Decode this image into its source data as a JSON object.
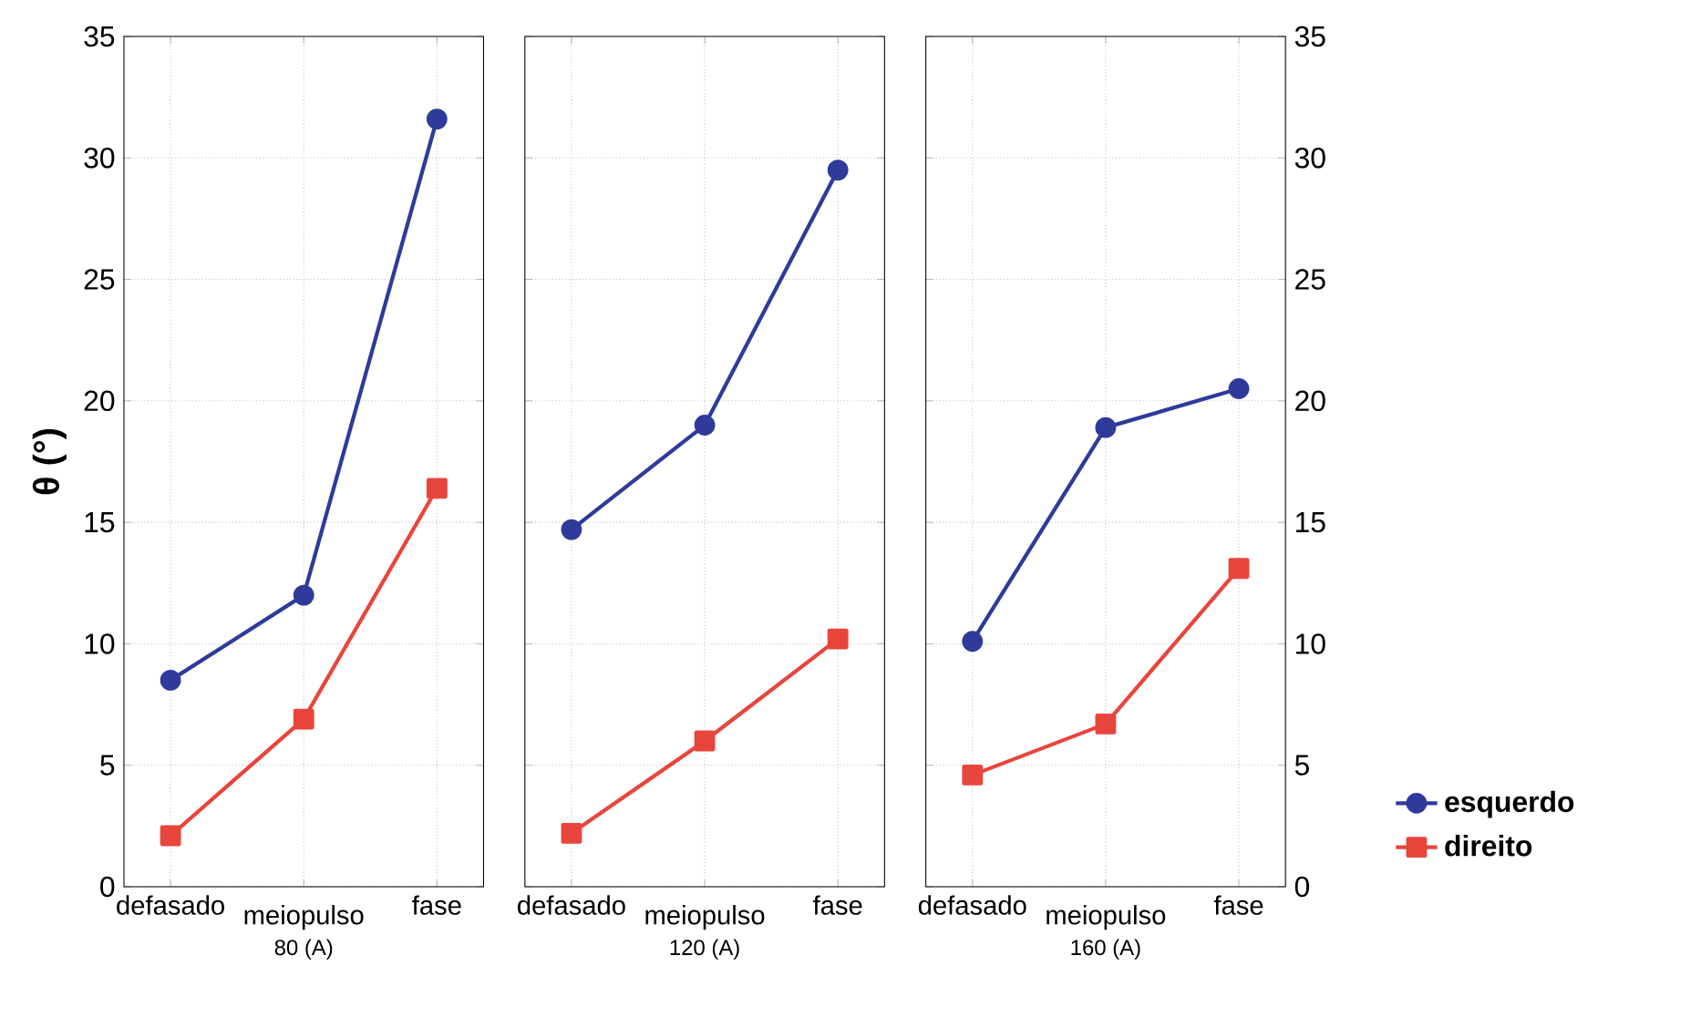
{
  "chart_data": [
    {
      "type": "line",
      "categories": [
        "defasado",
        "meiopulso",
        "fase"
      ],
      "xlabel": "80 (A)",
      "ylabel": "θ (°)",
      "ylim": [
        0,
        35
      ],
      "yticks": [
        0,
        5,
        10,
        15,
        20,
        25,
        30,
        35
      ],
      "grid": true,
      "legend": false,
      "series": [
        {
          "color": "#2e3b9a",
          "marker": "circle",
          "values": [
            8.5,
            12,
            31.6
          ]
        },
        {
          "color": "#e8453c",
          "marker": "square",
          "values": [
            2.1,
            6.9,
            16.4
          ]
        }
      ]
    },
    {
      "type": "line",
      "categories": [
        "defasado",
        "meiopulso",
        "fase"
      ],
      "xlabel": "120 (A)",
      "ylim": [
        0,
        35
      ],
      "yticks": [
        0,
        5,
        10,
        15,
        20,
        25,
        30,
        35
      ],
      "grid": true,
      "legend": false,
      "tick_labels": "x",
      "series": [
        {
          "color": "#2e3b9a",
          "marker": "circle",
          "values": [
            14.7,
            19,
            29.5
          ]
        },
        {
          "color": "#e8453c",
          "marker": "square",
          "values": [
            2.2,
            6.0,
            10.2
          ]
        }
      ]
    },
    {
      "type": "line",
      "categories": [
        "defasado",
        "meiopulso",
        "fase"
      ],
      "xlabel": "160 (A)",
      "ylim": [
        0,
        35
      ],
      "yticks": [
        0,
        5,
        10,
        15,
        20,
        25,
        30,
        35
      ],
      "grid": true,
      "legend": "bottom right",
      "series": [
        {
          "name": "esquerdo",
          "color": "#2e3b9a",
          "marker": "circle",
          "values": [
            10.1,
            18.9,
            20.5
          ]
        },
        {
          "name": "direito",
          "color": "#e8453c",
          "marker": "square",
          "values": [
            4.6,
            6.7,
            13.1
          ]
        }
      ]
    }
  ]
}
